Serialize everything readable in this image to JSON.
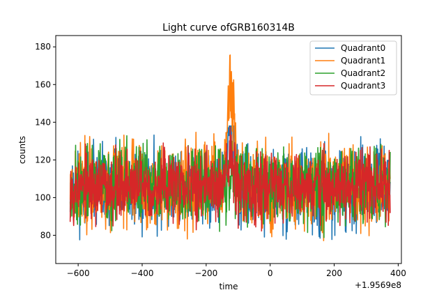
{
  "chart_data": {
    "type": "line",
    "title": "Light curve ofGRB160314B",
    "xlabel": "time",
    "ylabel": "counts",
    "x_offset_label": "+1.9569e8",
    "xlim": [
      -670,
      410
    ],
    "ylim": [
      65,
      186
    ],
    "x_ticks": [
      -600,
      -400,
      -200,
      0,
      200,
      400
    ],
    "x_tick_labels": [
      "−600",
      "−400",
      "−200",
      "0",
      "200",
      "400"
    ],
    "y_ticks": [
      80,
      100,
      120,
      140,
      160,
      180
    ],
    "y_tick_labels": [
      "80",
      "100",
      "120",
      "140",
      "160",
      "180"
    ],
    "grid": false,
    "legend_position": "top-right",
    "x_range": [
      -625,
      375
    ],
    "series": [
      {
        "name": "Quadrant0",
        "color": "#1f77b4",
        "mean": 105,
        "spread": 10,
        "min": 72,
        "max": 138,
        "seed": 11
      },
      {
        "name": "Quadrant1",
        "color": "#ff7f0e",
        "mean": 106,
        "spread": 11,
        "min": 71,
        "max": 181,
        "seed": 23
      },
      {
        "name": "Quadrant2",
        "color": "#2ca02c",
        "mean": 107,
        "spread": 10,
        "min": 70,
        "max": 145,
        "seed": 37
      },
      {
        "name": "Quadrant3",
        "color": "#d62728",
        "mean": 106,
        "spread": 9,
        "min": 74,
        "max": 146,
        "seed": 53
      }
    ],
    "peak": {
      "x_center": -122,
      "x_width": 10,
      "heights": [
        50,
        70,
        10,
        25
      ]
    }
  }
}
